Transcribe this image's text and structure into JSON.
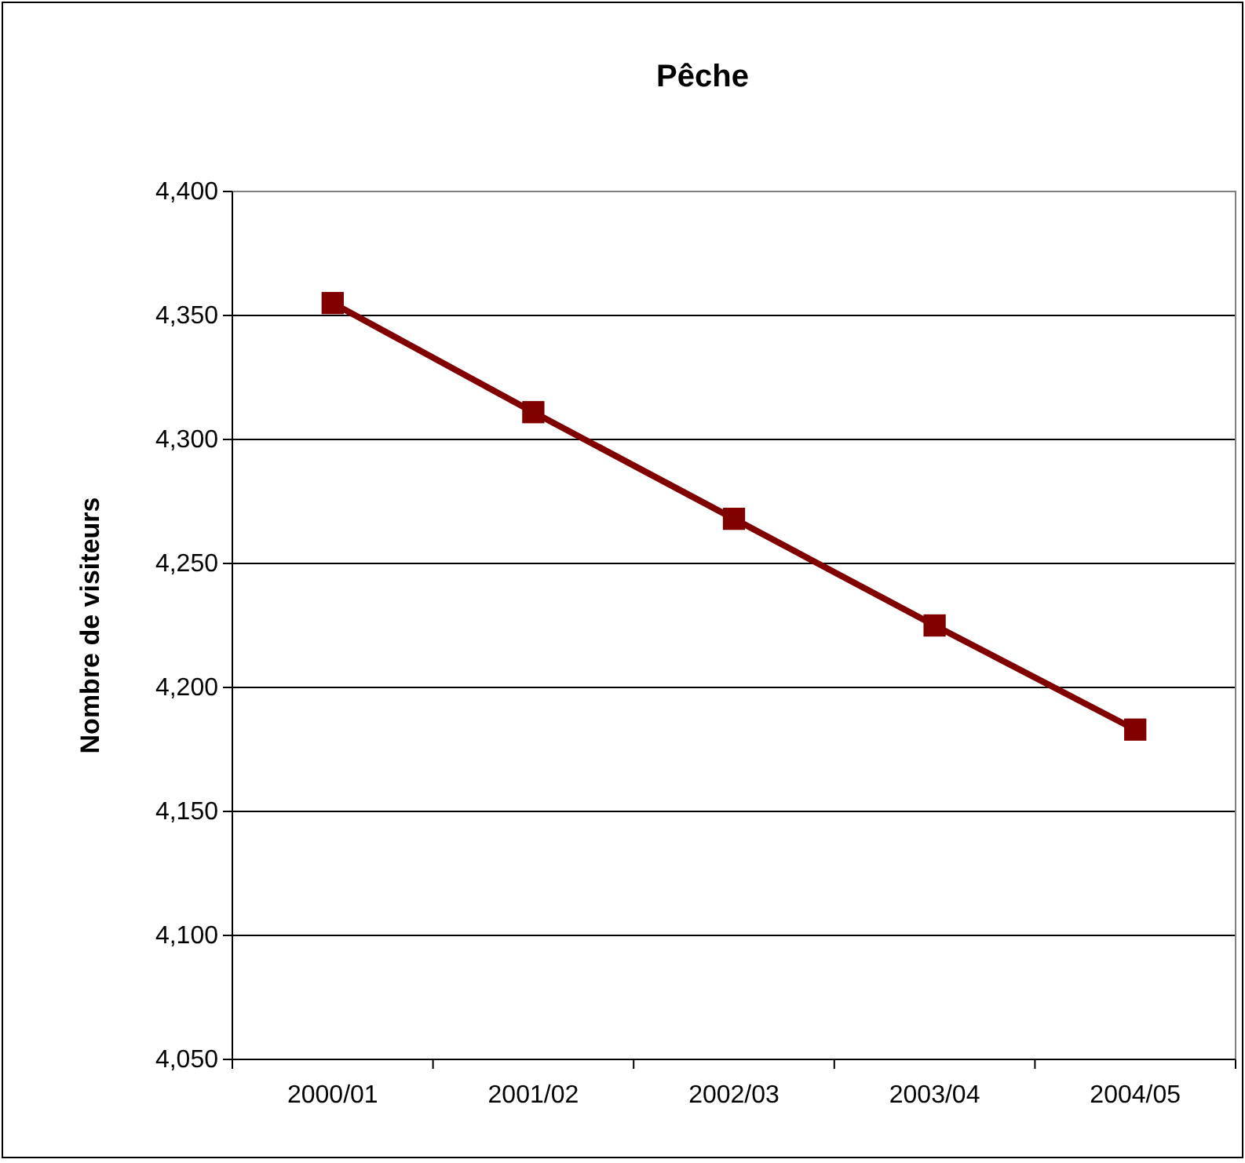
{
  "chart_data": {
    "type": "line",
    "title": "Pêche",
    "ylabel": "Nombre de visiteurs",
    "categories": [
      "2000/01",
      "2001/02",
      "2002/03",
      "2003/04",
      "2004/05"
    ],
    "series": [
      {
        "color": "#800000",
        "values": [
          4355,
          4311,
          4268,
          4225,
          4183
        ]
      }
    ],
    "ylim": [
      4050,
      4400
    ],
    "yticks": [
      {
        "value": 4050,
        "label": "4,050"
      },
      {
        "value": 4100,
        "label": "4,100"
      },
      {
        "value": 4150,
        "label": "4,150"
      },
      {
        "value": 4200,
        "label": "4,200"
      },
      {
        "value": 4250,
        "label": "4,250"
      },
      {
        "value": 4300,
        "label": "4,300"
      },
      {
        "value": 4350,
        "label": "4,350"
      },
      {
        "value": 4400,
        "label": "4,400"
      }
    ],
    "grid": "y",
    "marker": "square",
    "line_style": "solid"
  }
}
